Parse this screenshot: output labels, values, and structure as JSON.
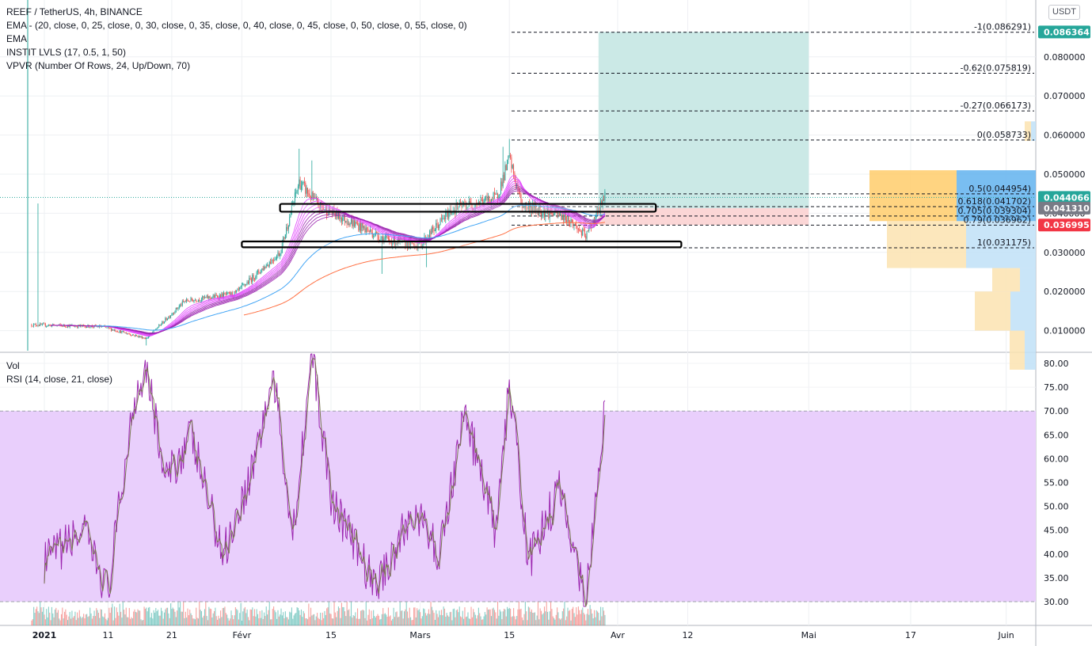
{
  "header": {
    "symbol_line": "REEF / TetherUS, 4h, BINANCE",
    "indicators": [
      "EMA -  (20, close, 0, 25, close, 0, 30, close, 0, 35, close, 0, 40, close, 0, 45, close, 0, 50, close, 0, 55, close, 0)",
      "EMA",
      "INSTIT LVLS (17, 0.5, 1, 50)",
      "VPVR (Number Of Rows, 24, Up/Down, 70)"
    ],
    "currency_button": "USDT"
  },
  "lower_pane": {
    "vol_label": "Vol",
    "rsi_label": "RSI (14, close, 21, close)"
  },
  "colors": {
    "up": "#26a69a",
    "down": "#ef5350",
    "ema_ribbon": "#9c27b0",
    "ema_ribbon_light": "#e040fb",
    "ema_blue": "#42a5f5",
    "ema_orange": "#ff7043",
    "target_zone": "#cbe9e6",
    "stop_zone": "#fbd6d6",
    "rsi_band": "#e9cffc",
    "rsi_line": "#9c27b0",
    "rsi_ma": "#7a7a52",
    "vp_up": "#fbe3b0",
    "vp_down": "#bfe0f7",
    "poc_up": "#ffcd6b",
    "poc_down": "#61b3ef"
  },
  "chart_data": [
    {
      "type": "candlestick",
      "title": "REEF / TetherUS, 4h, BINANCE",
      "y_scale": "linear",
      "ylim": [
        0.0,
        0.09
      ],
      "y_ticks": [
        "0.010000",
        "0.020000",
        "0.030000",
        "0.040000",
        "0.050000",
        "0.060000",
        "0.070000",
        "0.080000"
      ],
      "x_ticks": [
        "2021",
        "11",
        "21",
        "Févr",
        "15",
        "Mars",
        "15",
        "Avr",
        "12",
        "Mai",
        "17",
        "Juin"
      ],
      "price_anchors": [
        {
          "date": "2020-12-30",
          "price": 0.0115
        },
        {
          "date": "2021-01-10",
          "price": 0.011
        },
        {
          "date": "2021-01-17",
          "price": 0.008
        },
        {
          "date": "2021-01-23",
          "price": 0.0175
        },
        {
          "date": "2021-01-31",
          "price": 0.0195
        },
        {
          "date": "2021-02-07",
          "price": 0.03
        },
        {
          "date": "2021-02-10",
          "price": 0.048
        },
        {
          "date": "2021-02-13",
          "price": 0.042
        },
        {
          "date": "2021-02-24",
          "price": 0.033
        },
        {
          "date": "2021-03-01",
          "price": 0.032
        },
        {
          "date": "2021-03-06",
          "price": 0.041
        },
        {
          "date": "2021-03-13",
          "price": 0.044
        },
        {
          "date": "2021-03-15",
          "price": 0.054
        },
        {
          "date": "2021-03-17",
          "price": 0.042
        },
        {
          "date": "2021-03-24",
          "price": 0.039
        },
        {
          "date": "2021-03-27",
          "price": 0.034
        },
        {
          "date": "2021-03-30",
          "price": 0.0441
        }
      ],
      "last_price": "0.044066",
      "fib_levels": [
        {
          "label": "-1(0.086291)",
          "price": 0.086291
        },
        {
          "label": "-0.62(0.075819)",
          "price": 0.075819
        },
        {
          "label": "-0.27(0.066173)",
          "price": 0.066173
        },
        {
          "label": "0(0.058733)",
          "price": 0.058733
        },
        {
          "label": "0.5(0.044954)",
          "price": 0.044954
        },
        {
          "label": "0.618(0.041702)",
          "price": 0.041702
        },
        {
          "label": "0.705(0.039304)",
          "price": 0.039304
        },
        {
          "label": "0.79(0.036962)",
          "price": 0.036962
        },
        {
          "label": "1(0.031175)",
          "price": 0.031175
        }
      ],
      "price_labels": [
        {
          "text": "0.086364",
          "price": 0.086364,
          "color": "#26a69a"
        },
        {
          "text": "0.044066",
          "price": 0.044066,
          "color": "#26a69a"
        },
        {
          "text": "0.041310",
          "price": 0.04131,
          "color": "#787b86"
        },
        {
          "text": "0.036995",
          "price": 0.036995,
          "color": "#f23645"
        }
      ],
      "position": {
        "entry": 0.04131,
        "target": 0.086364,
        "stop": 0.036995,
        "start": "2021-03-29",
        "end": "2021-05-01"
      },
      "rectangles": [
        {
          "from": "2021-02-07",
          "to": "2021-04-07",
          "low": 0.0404,
          "high": 0.0424
        },
        {
          "from": "2021-02-01",
          "to": "2021-04-11",
          "low": 0.0313,
          "high": 0.0328
        }
      ],
      "volume_profile": [
        {
          "low": 0.0,
          "high": 0.01,
          "up": 0.019,
          "down": 0.014
        },
        {
          "low": 0.01,
          "high": 0.02,
          "up": 0.045,
          "down": 0.032
        },
        {
          "low": 0.02,
          "high": 0.026,
          "up": 0.035,
          "down": 0.02
        },
        {
          "low": 0.026,
          "high": 0.038,
          "up": 0.1,
          "down": 0.088
        },
        {
          "low": 0.038,
          "high": 0.051,
          "up": 0.11,
          "down": 0.1
        },
        {
          "low": 0.051,
          "high": 0.0585,
          "up": 0.0,
          "down": 0.0
        },
        {
          "low": 0.0585,
          "high": 0.0635,
          "up": 0.008,
          "down": 0.006
        }
      ]
    },
    {
      "type": "line",
      "title": "RSI (14, close, 21, close)",
      "ylim": [
        30,
        80
      ],
      "y_ticks": [
        "30.00",
        "35.00",
        "40.00",
        "45.00",
        "50.00",
        "55.00",
        "60.00",
        "65.00",
        "70.00",
        "75.00",
        "80.00"
      ],
      "band": [
        30,
        70
      ],
      "rsi_anchors": [
        {
          "date": "2021-01-01",
          "value": 38
        },
        {
          "date": "2021-01-07",
          "value": 45
        },
        {
          "date": "2021-01-11",
          "value": 32
        },
        {
          "date": "2021-01-15",
          "value": 72
        },
        {
          "date": "2021-01-17",
          "value": 80
        },
        {
          "date": "2021-01-20",
          "value": 55
        },
        {
          "date": "2021-01-24",
          "value": 65
        },
        {
          "date": "2021-01-29",
          "value": 40
        },
        {
          "date": "2021-02-02",
          "value": 55
        },
        {
          "date": "2021-02-06",
          "value": 77
        },
        {
          "date": "2021-02-09",
          "value": 44
        },
        {
          "date": "2021-02-12",
          "value": 82
        },
        {
          "date": "2021-02-15",
          "value": 52
        },
        {
          "date": "2021-02-22",
          "value": 33
        },
        {
          "date": "2021-02-28",
          "value": 49
        },
        {
          "date": "2021-03-04",
          "value": 40
        },
        {
          "date": "2021-03-08",
          "value": 70
        },
        {
          "date": "2021-03-13",
          "value": 44
        },
        {
          "date": "2021-03-15",
          "value": 76
        },
        {
          "date": "2021-03-18",
          "value": 38
        },
        {
          "date": "2021-03-23",
          "value": 54
        },
        {
          "date": "2021-03-27",
          "value": 30
        },
        {
          "date": "2021-03-30",
          "value": 71
        }
      ]
    }
  ]
}
